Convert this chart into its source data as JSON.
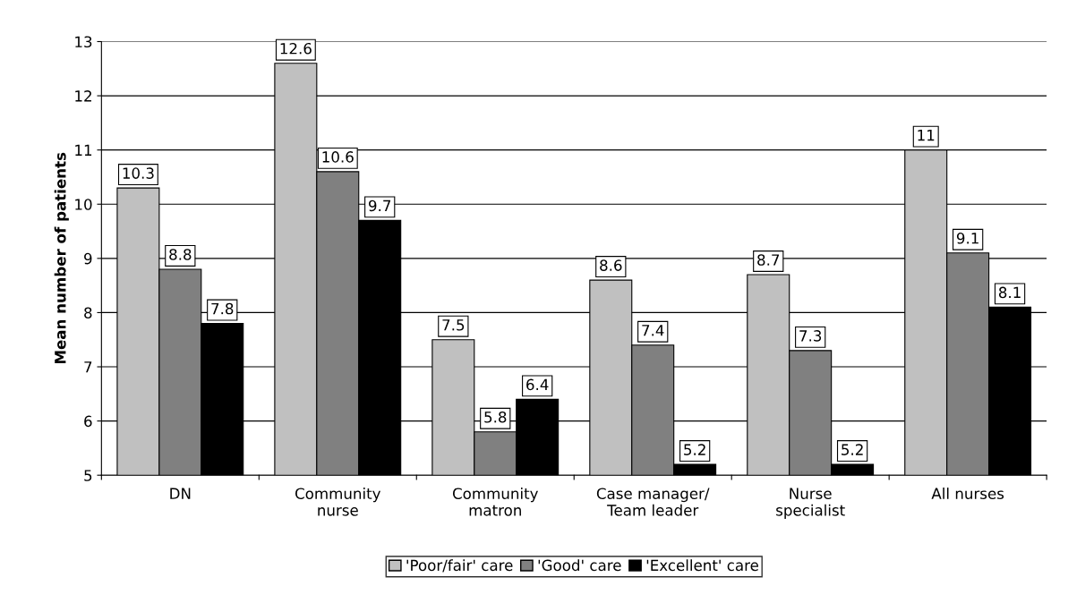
{
  "chart_data": {
    "type": "bar",
    "ylabel": "Mean number of patients",
    "categories": [
      "DN",
      "Community\nnurse",
      "Community\nmatron",
      "Case manager/\nTeam leader",
      "Nurse\nspecialist",
      "All nurses"
    ],
    "series": [
      {
        "name": "'Poor/fair' care",
        "color": "#c0c0c0",
        "values": [
          10.3,
          12.6,
          7.5,
          8.6,
          8.7,
          11
        ]
      },
      {
        "name": "'Good' care",
        "color": "#808080",
        "values": [
          8.8,
          10.6,
          5.8,
          7.4,
          7.3,
          9.1
        ]
      },
      {
        "name": "'Excellent' care",
        "color": "#000000",
        "values": [
          7.8,
          9.7,
          6.4,
          5.2,
          5.2,
          8.1
        ]
      }
    ],
    "ylim": [
      5,
      13
    ],
    "yticks": [
      5,
      6,
      7,
      8,
      9,
      10,
      11,
      12,
      13
    ],
    "grid": "y",
    "legend": "bottom",
    "data_labels": true
  }
}
